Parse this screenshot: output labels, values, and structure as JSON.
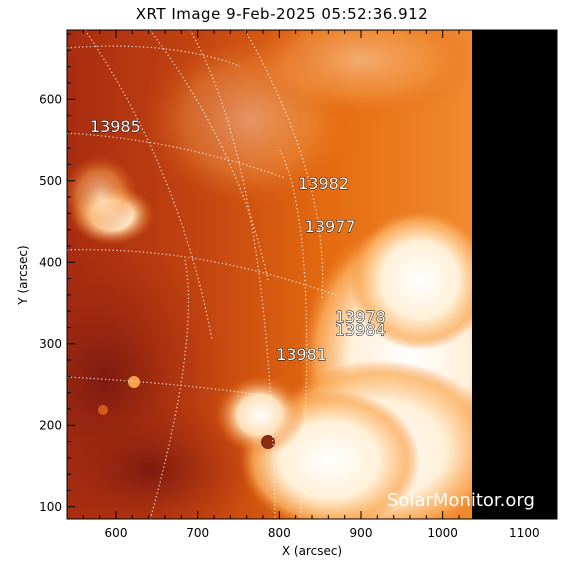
{
  "title": "XRT Image  9-Feb-2025 05:52:36.912",
  "x_axis": {
    "label": "X (arcsec)",
    "ticks": [
      "600",
      "700",
      "800",
      "900",
      "1000",
      "1100"
    ],
    "range": [
      540,
      1140
    ]
  },
  "y_axis": {
    "label": "Y (arcsec)",
    "ticks": [
      "100",
      "200",
      "300",
      "400",
      "500",
      "600"
    ],
    "range": [
      85,
      685
    ]
  },
  "active_regions": [
    {
      "id": "13985",
      "x": 568,
      "y": 560
    },
    {
      "id": "13982",
      "x": 823,
      "y": 490
    },
    {
      "id": "13977",
      "x": 831,
      "y": 437
    },
    {
      "id": "13978",
      "x": 868,
      "y": 326
    },
    {
      "id": "13984",
      "x": 868,
      "y": 310
    },
    {
      "id": "13981",
      "x": 796,
      "y": 280
    }
  ],
  "watermark": "SolarMonitor.org",
  "colors": {
    "corona": "#d9560a",
    "bright": "#fff4e4",
    "off_limb": "#000000"
  }
}
